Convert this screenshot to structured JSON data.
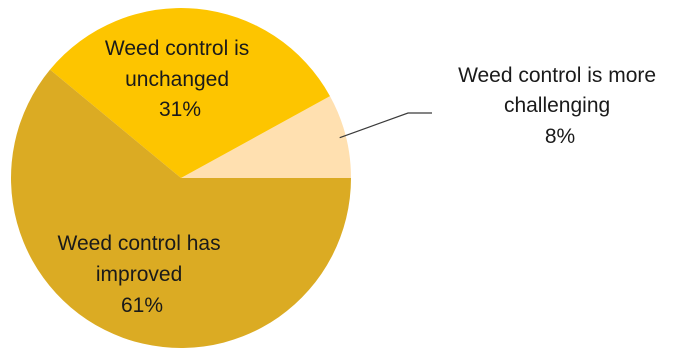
{
  "chart_data": {
    "type": "pie",
    "title": "",
    "legend": "none",
    "slices": [
      {
        "label_lines": [
          "Weed control is more",
          "challenging"
        ],
        "value": 8,
        "value_label": "8%",
        "color": "#FFE0B0"
      },
      {
        "label_lines": [
          "Weed control is",
          "unchanged"
        ],
        "value": 31,
        "value_label": "31%",
        "color": "#FDC500"
      },
      {
        "label_lines": [
          "Weed control has",
          "improved"
        ],
        "value": 61,
        "value_label": "61%",
        "color": "#DBAB23"
      }
    ]
  }
}
